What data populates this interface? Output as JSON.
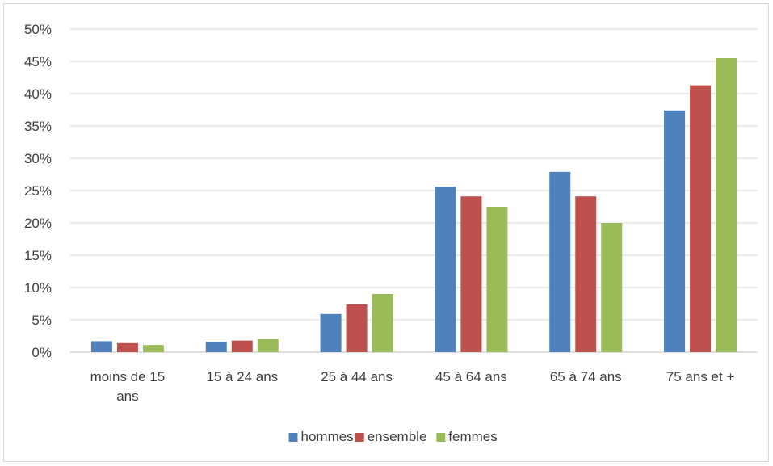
{
  "chart_data": {
    "type": "bar",
    "categories": [
      [
        "moins de 15",
        "ans"
      ],
      [
        "15 à 24 ans"
      ],
      [
        "25 à 44 ans"
      ],
      [
        "45 à 64 ans"
      ],
      [
        "65 à 74 ans"
      ],
      [
        "75 ans et +"
      ]
    ],
    "series": [
      {
        "name": "hommes",
        "color": "#4f81bd",
        "values": [
          1.7,
          1.6,
          5.9,
          25.6,
          27.9,
          37.4
        ]
      },
      {
        "name": "ensemble",
        "color": "#c0504d",
        "values": [
          1.4,
          1.8,
          7.4,
          24.1,
          24.1,
          41.3
        ]
      },
      {
        "name": "femmes",
        "color": "#9bbb59",
        "values": [
          1.1,
          2.0,
          9.0,
          22.5,
          20.0,
          45.5
        ]
      }
    ],
    "y_ticks": [
      "0%",
      "5%",
      "10%",
      "15%",
      "20%",
      "25%",
      "30%",
      "35%",
      "40%",
      "45%",
      "50%"
    ],
    "ylim": [
      0,
      50
    ],
    "grid": true,
    "legend_position": "bottom"
  }
}
